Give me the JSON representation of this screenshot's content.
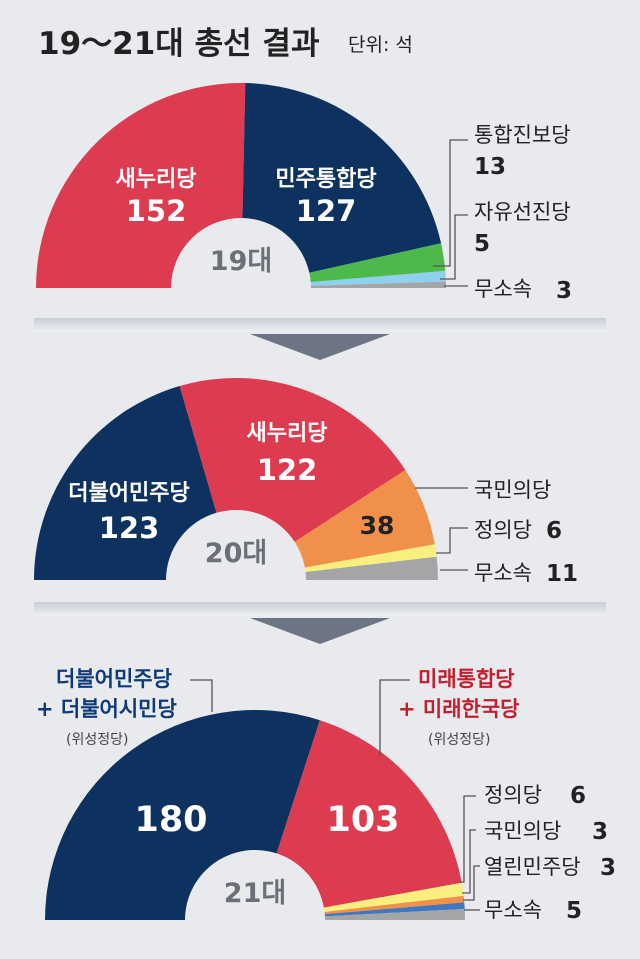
{
  "header": {
    "title": "19～21대 총선 결과",
    "unit": "단위: 석"
  },
  "colors": {
    "background": "#e9eaee",
    "navy": "#0e3260",
    "red": "#dc3b50",
    "green": "#4cb94a",
    "lightblue": "#8fd0ee",
    "gray": "#a4a5a7",
    "orange": "#f0904a",
    "yellow": "#f8ef7e",
    "blue": "#3f78c0",
    "text": "#222222",
    "red_text": "#c2202f",
    "navy_text": "#0e3a7a"
  },
  "chart_data": [
    {
      "type": "pie",
      "center_label": "19대",
      "series": [
        {
          "name": "새누리당",
          "value": 152,
          "value_label": "152",
          "color": "#dc3b50"
        },
        {
          "name": "민주통합당",
          "value": 127,
          "value_label": "127",
          "color": "#0e3260"
        },
        {
          "name": "통합진보당",
          "value": 13,
          "value_label": "13",
          "color": "#4cb94a"
        },
        {
          "name": "자유선진당",
          "value": 5,
          "value_label": "5",
          "color": "#8fd0ee"
        },
        {
          "name": "무소속",
          "value": 3,
          "value_label": "3",
          "color": "#a4a5a7"
        }
      ]
    },
    {
      "type": "pie",
      "center_label": "20대",
      "series": [
        {
          "name": "더불어민주당",
          "value": 123,
          "value_label": "123",
          "color": "#0e3260"
        },
        {
          "name": "새누리당",
          "value": 122,
          "value_label": "122",
          "color": "#dc3b50"
        },
        {
          "name": "국민의당",
          "value": 38,
          "value_label": "38",
          "color": "#f0904a"
        },
        {
          "name": "정의당",
          "value": 6,
          "value_label": "6",
          "color": "#f8ef7e"
        },
        {
          "name": "무소속",
          "value": 11,
          "value_label": "11",
          "color": "#a4a5a7"
        }
      ]
    },
    {
      "type": "pie",
      "center_label": "21대",
      "series": [
        {
          "name": "더불어민주당",
          "value": 180,
          "value_label": "180",
          "color": "#0e3260"
        },
        {
          "name": "미래통합당",
          "value": 103,
          "value_label": "103",
          "color": "#dc3b50"
        },
        {
          "name": "정의당",
          "value": 6,
          "value_label": "6",
          "color": "#f8ef7e"
        },
        {
          "name": "국민의당",
          "value": 3,
          "value_label": "3",
          "color": "#f0904a"
        },
        {
          "name": "열린민주당",
          "value": 3,
          "value_label": "3",
          "color": "#3f78c0"
        },
        {
          "name": "무소속",
          "value": 5,
          "value_label": "5",
          "color": "#a4a5a7"
        }
      ],
      "party_labels": {
        "left": {
          "line1": "더불어민주당",
          "line2": "+ 더불어시민당",
          "line3": "(위성정당)"
        },
        "right": {
          "line1": "미래통합당",
          "line2": "+ 미래한국당",
          "line3": "(위성정당)"
        }
      }
    }
  ]
}
